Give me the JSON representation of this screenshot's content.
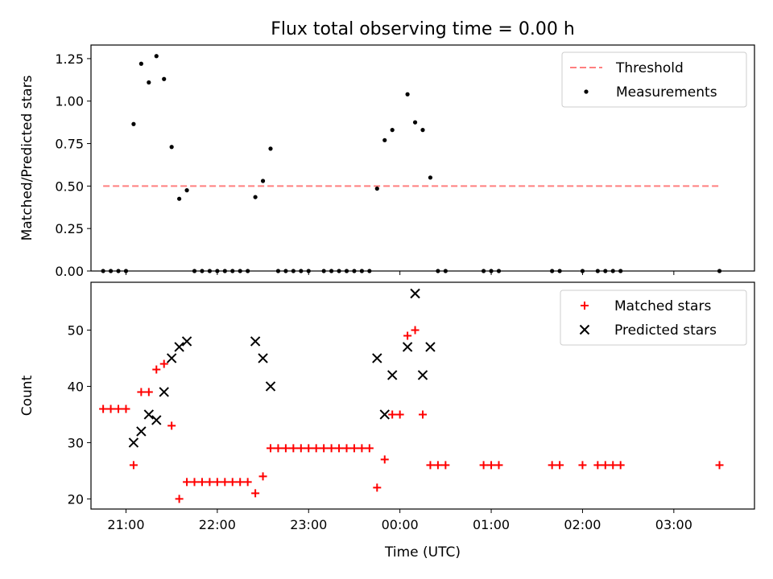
{
  "figure": {
    "title": "Flux total observing time = 0.00 h",
    "xlabel": "Time (UTC)"
  },
  "chart_data": [
    {
      "type": "scatter",
      "name": "top",
      "xlabel": "",
      "ylabel": "Matched/Predicted stars",
      "xlim": [
        "20:37",
        "03:53"
      ],
      "ylim": [
        0,
        1.33
      ],
      "yticks": [
        0,
        0.25,
        0.5,
        0.75,
        1.0,
        1.25
      ],
      "ytick_labels": [
        "0.00",
        "0.25",
        "0.50",
        "0.75",
        "1.00",
        "1.25"
      ],
      "xticks": [
        "21:00",
        "22:00",
        "23:00",
        "00:00",
        "01:00",
        "02:00",
        "03:00"
      ],
      "tick_labels_x_visible": false,
      "legend_position": "top-right",
      "threshold": {
        "name": "Threshold",
        "y": 0.5,
        "x_start": "20:45",
        "x_end": "03:30",
        "color": "#ff7f7f"
      },
      "series": [
        {
          "name": "Measurements",
          "marker": "dot",
          "color": "#000000",
          "points": [
            [
              "20:45",
              0
            ],
            [
              "20:50",
              0
            ],
            [
              "20:55",
              0
            ],
            [
              "21:00",
              0
            ],
            [
              "21:05",
              0.865
            ],
            [
              "21:10",
              1.22
            ],
            [
              "21:15",
              1.11
            ],
            [
              "21:20",
              1.265
            ],
            [
              "21:25",
              1.13
            ],
            [
              "21:30",
              0.73
            ],
            [
              "21:35",
              0.425
            ],
            [
              "21:40",
              0.475
            ],
            [
              "21:45",
              0
            ],
            [
              "21:50",
              0
            ],
            [
              "21:55",
              0
            ],
            [
              "22:00",
              0
            ],
            [
              "22:05",
              0
            ],
            [
              "22:10",
              0
            ],
            [
              "22:15",
              0
            ],
            [
              "22:20",
              0
            ],
            [
              "22:25",
              0.435
            ],
            [
              "22:30",
              0.53
            ],
            [
              "22:35",
              0.72
            ],
            [
              "22:40",
              0
            ],
            [
              "22:45",
              0
            ],
            [
              "22:50",
              0
            ],
            [
              "22:55",
              0
            ],
            [
              "23:00",
              0
            ],
            [
              "23:10",
              0
            ],
            [
              "23:15",
              0
            ],
            [
              "23:20",
              0
            ],
            [
              "23:25",
              0
            ],
            [
              "23:30",
              0
            ],
            [
              "23:35",
              0
            ],
            [
              "23:40",
              0
            ],
            [
              "23:45",
              0.485
            ],
            [
              "23:50",
              0.77
            ],
            [
              "23:55",
              0.83
            ],
            [
              "00:05",
              1.04
            ],
            [
              "00:10",
              0.875
            ],
            [
              "00:15",
              0.83
            ],
            [
              "00:20",
              0.55
            ],
            [
              "00:25",
              0
            ],
            [
              "00:30",
              0
            ],
            [
              "00:55",
              0
            ],
            [
              "01:00",
              0
            ],
            [
              "01:05",
              0
            ],
            [
              "01:40",
              0
            ],
            [
              "01:45",
              0
            ],
            [
              "02:00",
              0
            ],
            [
              "02:10",
              0
            ],
            [
              "02:15",
              0
            ],
            [
              "02:20",
              0
            ],
            [
              "02:25",
              0
            ],
            [
              "03:30",
              0
            ]
          ]
        }
      ]
    },
    {
      "type": "scatter",
      "name": "bottom",
      "xlabel": "Time (UTC)",
      "ylabel": "Count",
      "xlim": [
        "20:37",
        "03:53"
      ],
      "ylim": [
        18.2,
        58.5
      ],
      "yticks": [
        20,
        30,
        40,
        50
      ],
      "ytick_labels": [
        "20",
        "30",
        "40",
        "50"
      ],
      "xticks": [
        "21:00",
        "22:00",
        "23:00",
        "00:00",
        "01:00",
        "02:00",
        "03:00"
      ],
      "xtick_labels": [
        "21:00",
        "22:00",
        "23:00",
        "00:00",
        "01:00",
        "02:00",
        "03:00"
      ],
      "legend_position": "top-right",
      "series": [
        {
          "name": "Matched stars",
          "marker": "plus",
          "color": "#ff0000",
          "points": [
            [
              "20:45",
              36
            ],
            [
              "20:50",
              36
            ],
            [
              "20:55",
              36
            ],
            [
              "21:00",
              36
            ],
            [
              "21:05",
              26
            ],
            [
              "21:10",
              39
            ],
            [
              "21:15",
              39
            ],
            [
              "21:20",
              43
            ],
            [
              "21:25",
              44
            ],
            [
              "21:30",
              33
            ],
            [
              "21:35",
              20
            ],
            [
              "21:40",
              23
            ],
            [
              "21:45",
              23
            ],
            [
              "21:50",
              23
            ],
            [
              "21:55",
              23
            ],
            [
              "22:00",
              23
            ],
            [
              "22:05",
              23
            ],
            [
              "22:10",
              23
            ],
            [
              "22:15",
              23
            ],
            [
              "22:20",
              23
            ],
            [
              "22:25",
              21
            ],
            [
              "22:30",
              24
            ],
            [
              "22:35",
              29
            ],
            [
              "22:40",
              29
            ],
            [
              "22:45",
              29
            ],
            [
              "22:50",
              29
            ],
            [
              "22:55",
              29
            ],
            [
              "23:00",
              29
            ],
            [
              "23:05",
              29
            ],
            [
              "23:10",
              29
            ],
            [
              "23:15",
              29
            ],
            [
              "23:20",
              29
            ],
            [
              "23:25",
              29
            ],
            [
              "23:30",
              29
            ],
            [
              "23:35",
              29
            ],
            [
              "23:40",
              29
            ],
            [
              "23:45",
              22
            ],
            [
              "23:50",
              27
            ],
            [
              "23:55",
              35
            ],
            [
              "00:00",
              35
            ],
            [
              "00:05",
              49
            ],
            [
              "00:10",
              50
            ],
            [
              "00:15",
              35
            ],
            [
              "00:20",
              26
            ],
            [
              "00:25",
              26
            ],
            [
              "00:30",
              26
            ],
            [
              "00:55",
              26
            ],
            [
              "01:00",
              26
            ],
            [
              "01:05",
              26
            ],
            [
              "01:40",
              26
            ],
            [
              "01:45",
              26
            ],
            [
              "02:00",
              26
            ],
            [
              "02:10",
              26
            ],
            [
              "02:15",
              26
            ],
            [
              "02:20",
              26
            ],
            [
              "02:25",
              26
            ],
            [
              "03:30",
              26
            ]
          ]
        },
        {
          "name": "Predicted stars",
          "marker": "x",
          "color": "#000000",
          "points": [
            [
              "21:05",
              30
            ],
            [
              "21:10",
              32
            ],
            [
              "21:15",
              35
            ],
            [
              "21:20",
              34
            ],
            [
              "21:25",
              39
            ],
            [
              "21:30",
              45
            ],
            [
              "21:35",
              47
            ],
            [
              "21:40",
              48
            ],
            [
              "22:25",
              48
            ],
            [
              "22:30",
              45
            ],
            [
              "22:35",
              40
            ],
            [
              "23:45",
              45
            ],
            [
              "23:50",
              35
            ],
            [
              "23:55",
              42
            ],
            [
              "00:05",
              47
            ],
            [
              "00:10",
              56.5
            ],
            [
              "00:15",
              42
            ],
            [
              "00:20",
              47
            ]
          ]
        }
      ]
    }
  ]
}
